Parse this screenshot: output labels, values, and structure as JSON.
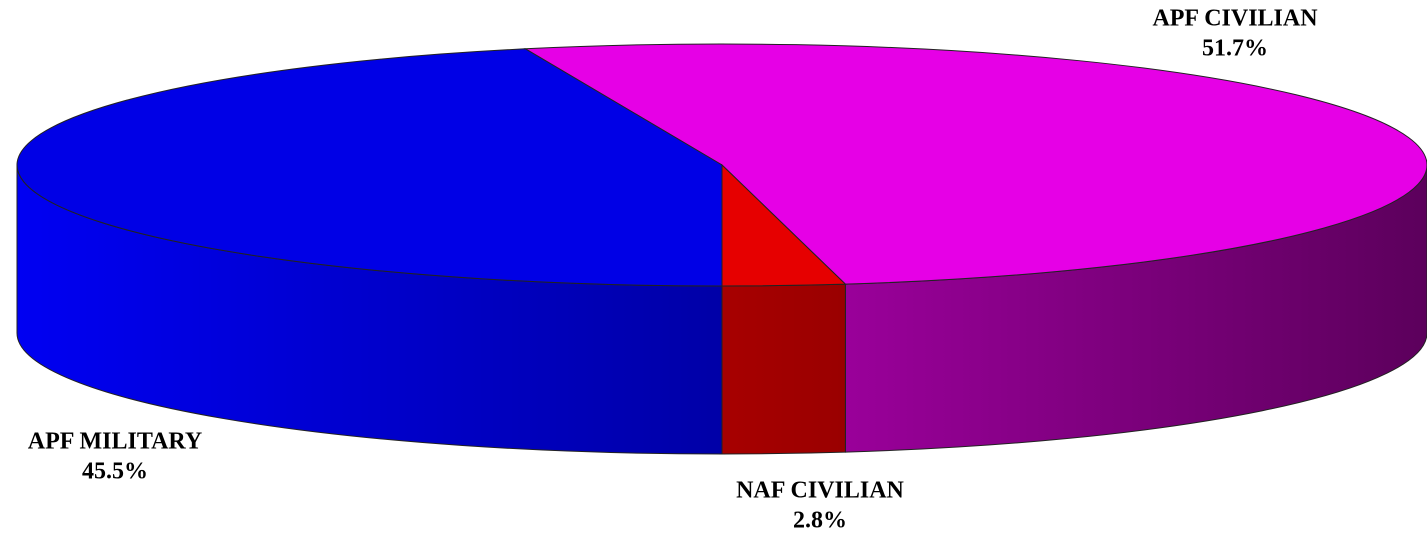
{
  "chart_data": {
    "type": "pie",
    "categories": [
      "APF CIVILIAN",
      "NAF CIVILIAN",
      "APF MILITARY"
    ],
    "values": [
      51.7,
      2.8,
      45.5
    ],
    "value_labels": [
      "51.7%",
      "2.8%",
      "45.5%"
    ],
    "colors": [
      "#e600e6",
      "#e60000",
      "#0000e6"
    ]
  }
}
